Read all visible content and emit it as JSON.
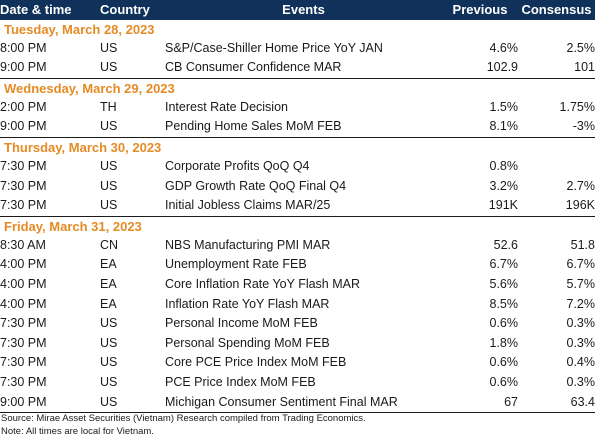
{
  "header": {
    "date_time": "Date & time",
    "country": "Country",
    "events": "Events",
    "previous": "Previous",
    "consensus": "Consensus"
  },
  "colors": {
    "header_bg": "#10325a",
    "day_label": "#e58b26"
  },
  "days": [
    {
      "label": "Tuesday, March 28, 2023",
      "rows": [
        {
          "time": "8:00 PM",
          "country": "US",
          "event": "S&P/Case-Shiller Home Price YoY JAN",
          "previous": "4.6%",
          "consensus": "2.5%"
        },
        {
          "time": "9:00 PM",
          "country": "US",
          "event": "CB Consumer Confidence MAR",
          "previous": "102.9",
          "consensus": "101"
        }
      ]
    },
    {
      "label": "Wednesday, March 29, 2023",
      "rows": [
        {
          "time": "2:00 PM",
          "country": "TH",
          "event": "Interest Rate Decision",
          "previous": "1.5%",
          "consensus": "1.75%"
        },
        {
          "time": "9:00 PM",
          "country": "US",
          "event": "Pending Home Sales MoM FEB",
          "previous": "8.1%",
          "consensus": "-3%"
        }
      ]
    },
    {
      "label": "Thursday, March 30, 2023",
      "rows": [
        {
          "time": "7:30 PM",
          "country": "US",
          "event": "Corporate Profits QoQ Q4",
          "previous": "0.8%",
          "consensus": ""
        },
        {
          "time": "7:30 PM",
          "country": "US",
          "event": "GDP Growth Rate QoQ Final Q4",
          "previous": "3.2%",
          "consensus": "2.7%"
        },
        {
          "time": "7:30 PM",
          "country": "US",
          "event": "Initial Jobless Claims MAR/25",
          "previous": "191K",
          "consensus": "196K"
        }
      ]
    },
    {
      "label": "Friday, March 31, 2023",
      "rows": [
        {
          "time": "8:30 AM",
          "country": "CN",
          "event": "NBS Manufacturing PMI MAR",
          "previous": "52.6",
          "consensus": "51.8"
        },
        {
          "time": "4:00 PM",
          "country": "EA",
          "event": "Unemployment Rate FEB",
          "previous": "6.7%",
          "consensus": "6.7%"
        },
        {
          "time": "4:00 PM",
          "country": "EA",
          "event": "Core Inflation Rate YoY Flash MAR",
          "previous": "5.6%",
          "consensus": "5.7%"
        },
        {
          "time": "4:00 PM",
          "country": "EA",
          "event": "Inflation Rate YoY Flash MAR",
          "previous": "8.5%",
          "consensus": "7.2%"
        },
        {
          "time": "7:30 PM",
          "country": "US",
          "event": "Personal Income MoM FEB",
          "previous": "0.6%",
          "consensus": "0.3%"
        },
        {
          "time": "7:30 PM",
          "country": "US",
          "event": "Personal Spending MoM FEB",
          "previous": "1.8%",
          "consensus": "0.3%"
        },
        {
          "time": "7:30 PM",
          "country": "US",
          "event": "Core PCE Price Index MoM FEB",
          "previous": "0.6%",
          "consensus": "0.4%"
        },
        {
          "time": "7:30 PM",
          "country": "US",
          "event": "PCE Price Index MoM FEB",
          "previous": "0.6%",
          "consensus": "0.3%"
        },
        {
          "time": "9:00 PM",
          "country": "US",
          "event": "Michigan Consumer Sentiment Final MAR",
          "previous": "67",
          "consensus": "63.4"
        }
      ]
    }
  ],
  "notes": {
    "source": "Source: Mirae Asset Securities (Vietnam) Research compiled from Trading Economics.",
    "note": "Note: All times are local for Vietnam."
  }
}
